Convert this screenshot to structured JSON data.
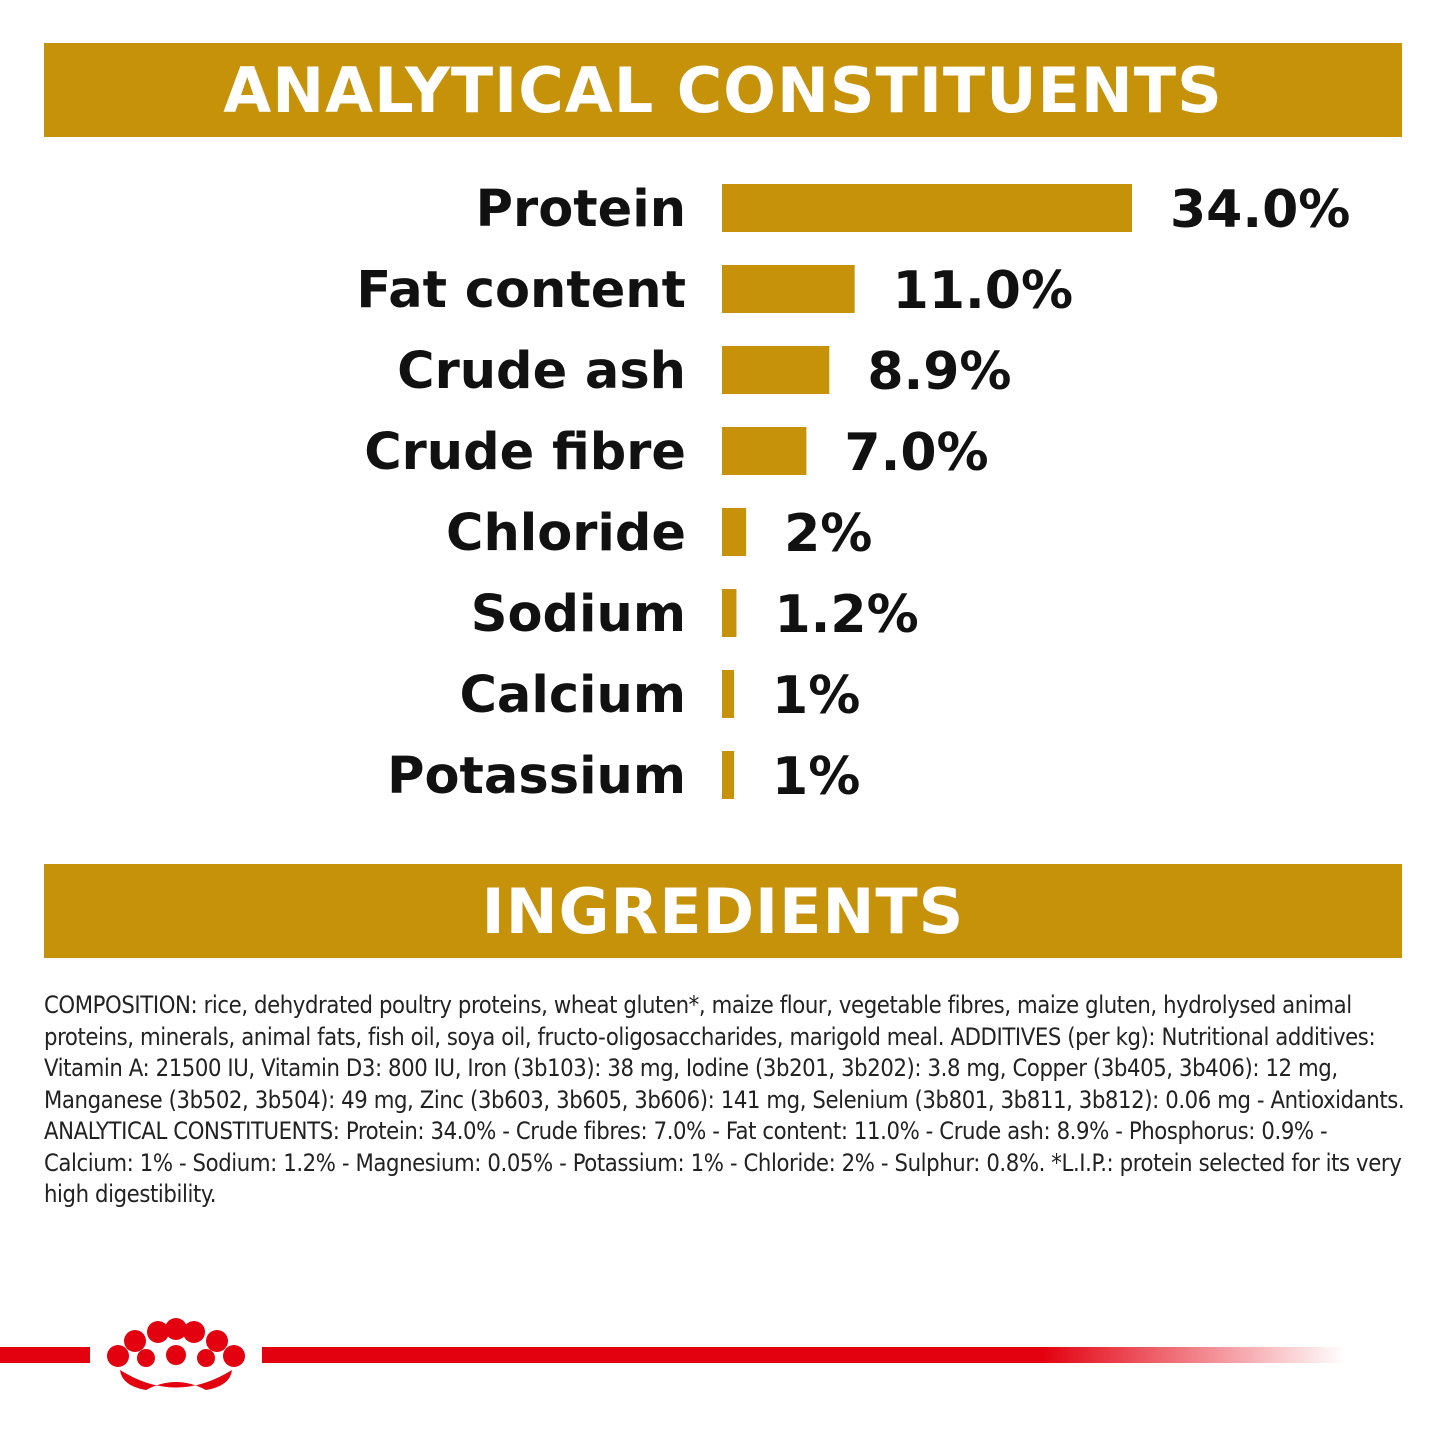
{
  "colors": {
    "gold": "#C6920A",
    "brand_red": "#E3000F",
    "text": "#111111"
  },
  "headers": {
    "analytical": "ANALYTICAL CONSTITUENTS",
    "ingredients": "INGREDIENTS"
  },
  "chart_data": {
    "type": "bar",
    "orientation": "horizontal",
    "title": "ANALYTICAL CONSTITUENTS",
    "categories": [
      "Protein",
      "Fat content",
      "Crude ash",
      "Crude fibre",
      "Chloride",
      "Sodium",
      "Calcium",
      "Potassium"
    ],
    "values": [
      34.0,
      11.0,
      8.9,
      7.0,
      2,
      1.2,
      1,
      1
    ],
    "value_labels": [
      "34.0%",
      "11.0%",
      "8.9%",
      "7.0%",
      "2%",
      "1.2%",
      "1%",
      "1%"
    ],
    "unit": "%",
    "xlim": [
      0,
      34
    ],
    "grid": false,
    "legend": "none"
  },
  "ingredients": {
    "text": "COMPOSITION: rice, dehydrated poultry proteins, wheat gluten*, maize flour, vegetable fibres, maize gluten, hydrolysed animal proteins, minerals, animal fats, fish oil, soya oil, fructo-oligosaccharides, marigold meal. ADDITIVES (per kg): Nutritional additives: Vitamin A: 21500 IU, Vitamin D3: 800 IU, Iron (3b103): 38 mg, Iodine (3b201, 3b202): 3.8 mg, Copper (3b405, 3b406): 12 mg, Manganese (3b502, 3b504): 49 mg, Zinc (3b603, 3b605, 3b606): 141 mg, Selenium (3b801, 3b811, 3b812): 0.06 mg - Antioxidants. ANALYTICAL CONSTITUENTS: Protein: 34.0% - Crude fibres: 7.0% - Fat content: 11.0% - Crude ash: 8.9% - Phosphorus: 0.9% - Calcium: 1% - Sodium: 1.2% - Magnesium: 0.05% - Potassium: 1% - Chloride: 2% - Sulphur: 0.8%. *L.I.P.: protein selected for its very high digestibility."
  },
  "logo": {
    "icon": "royal-crown-icon"
  }
}
